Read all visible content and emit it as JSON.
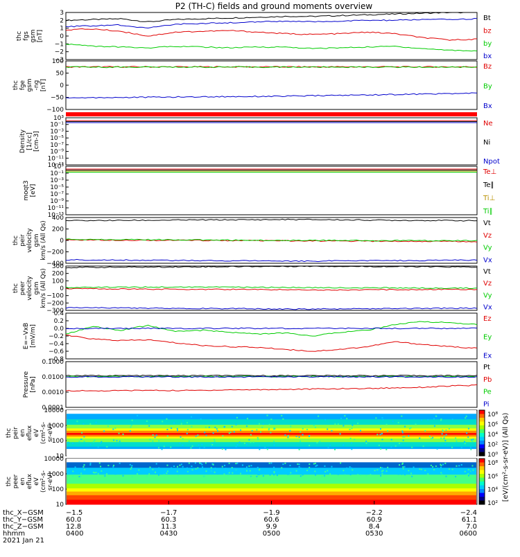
{
  "title": "P2 (TH-C) fields and ground moments overview",
  "colors": {
    "black": "#000000",
    "red": "#e00000",
    "green": "#00cc00",
    "blue": "#0000cc",
    "orange": "#b89000"
  },
  "chart_data": [
    {
      "type": "line",
      "ylabel": [
        "thc",
        "fgs",
        "gsm",
        "[nT]"
      ],
      "ylim": [
        -3,
        3
      ],
      "yticks": [
        "3",
        "2",
        "1",
        "0",
        "−1",
        "−2",
        "−3"
      ],
      "legend": [
        {
          "label": "Bt",
          "color": "#000000"
        },
        {
          "label": "bz",
          "color": "#e00000"
        },
        {
          "label": "by",
          "color": "#00cc00"
        },
        {
          "label": "bx",
          "color": "#0000cc"
        }
      ],
      "series": [
        {
          "name": "Bt",
          "values": [
            2.0,
            2.1,
            2.2,
            1.8,
            2.1,
            2.2,
            2.3,
            2.4,
            2.5,
            2.5,
            2.6,
            2.7,
            2.8,
            2.9,
            3.0,
            3.0
          ],
          "color": "#000000"
        },
        {
          "name": "bz",
          "values": [
            0.8,
            0.9,
            0.6,
            0.0,
            0.5,
            0.6,
            0.7,
            0.5,
            0.3,
            0.2,
            0.3,
            0.5,
            0.3,
            -0.2,
            -0.5,
            -0.4
          ],
          "color": "#e00000"
        },
        {
          "name": "by",
          "values": [
            -1.0,
            -1.3,
            -1.4,
            -1.5,
            -1.3,
            -1.4,
            -1.5,
            -1.4,
            -1.4,
            -1.6,
            -1.5,
            -1.4,
            -1.3,
            -1.6,
            -1.8,
            -1.9
          ],
          "color": "#00cc00"
        },
        {
          "name": "bx",
          "values": [
            1.2,
            1.3,
            1.4,
            1.0,
            1.5,
            1.6,
            1.7,
            1.8,
            1.9,
            1.8,
            1.9,
            2.0,
            2.0,
            2.1,
            2.1,
            2.2
          ],
          "color": "#0000cc"
        }
      ]
    },
    {
      "type": "line",
      "ylabel": [
        "thc",
        "fge",
        "gsm",
        "-ng",
        "[nT]"
      ],
      "ylim": [
        -130,
        100
      ],
      "yticks": [
        "100",
        "50",
        "0",
        "−50",
        "−100"
      ],
      "legend": [
        {
          "label": "Bz",
          "color": "#e00000"
        },
        {
          "label": "By",
          "color": "#00cc00"
        },
        {
          "label": "Bx",
          "color": "#0000cc"
        }
      ],
      "series": [
        {
          "name": "Bz",
          "values": [
            72,
            72,
            72,
            72,
            72,
            72,
            72,
            72,
            72,
            72,
            72,
            72,
            72,
            72,
            72,
            72
          ],
          "color": "#e00000"
        },
        {
          "name": "By",
          "values": [
            71,
            71,
            71,
            71,
            71,
            71,
            71,
            71,
            71,
            71,
            71,
            71,
            71,
            71,
            71,
            71
          ],
          "color": "#00cc00"
        },
        {
          "name": "Bx",
          "values": [
            -75,
            -74,
            -73,
            -72,
            -71,
            -70,
            -69,
            -68,
            -67,
            -65,
            -63,
            -61,
            -59,
            -57,
            -55,
            -53
          ],
          "color": "#0000cc"
        }
      ]
    },
    {
      "type": "line",
      "ylabel": [
        "Density",
        "[1/cc]",
        "[cm-3]"
      ],
      "ylim_log": [
        -12,
        4
      ],
      "yticks": [
        "10³",
        "10⁻¹",
        "10⁻³",
        "10⁻⁵",
        "10⁻⁷",
        "10⁻⁹",
        "10⁻¹¹",
        "10⁻¹³"
      ],
      "legend": [
        {
          "label": "Ne",
          "color": "#e00000"
        },
        {
          "label": "Ni",
          "color": "#000000"
        },
        {
          "label": "Npot",
          "color": "#0000cc"
        }
      ]
    },
    {
      "type": "line",
      "ylabel": [
        "moqt3",
        "[eV]"
      ],
      "ylim_log": [
        -12,
        4
      ],
      "yticks": [
        "10³",
        "10⁻¹",
        "10⁻³",
        "10⁻⁵",
        "10⁻⁷",
        "10⁻⁹",
        "10⁻¹¹",
        "10⁻¹³"
      ],
      "legend": [
        {
          "label": "Te⊥",
          "color": "#e00000"
        },
        {
          "label": "Te∥",
          "color": "#000000"
        },
        {
          "label": "Ti⊥",
          "color": "#b89000"
        },
        {
          "label": "Ti∥",
          "color": "#00cc00"
        }
      ]
    },
    {
      "type": "line",
      "ylabel": [
        "thc",
        "peir",
        "velocity",
        "gsm",
        "km/s (All Qs)"
      ],
      "ylim": [
        -400,
        400
      ],
      "yticks": [
        "400",
        "200",
        "0",
        "−200",
        "−400"
      ],
      "legend": [
        {
          "label": "Vt",
          "color": "#000000"
        },
        {
          "label": "Vz",
          "color": "#e00000"
        },
        {
          "label": "Vy",
          "color": "#00cc00"
        },
        {
          "label": "Vx",
          "color": "#0000cc"
        }
      ],
      "series": [
        {
          "name": "Vt",
          "values": [
            345,
            348,
            350,
            352,
            355,
            358,
            360,
            362,
            365,
            364,
            360,
            355,
            352,
            350,
            348,
            345
          ],
          "color": "#000000"
        },
        {
          "name": "Vz",
          "values": [
            10,
            8,
            5,
            3,
            2,
            0,
            -2,
            -5,
            -8,
            -10,
            -12,
            -14,
            -15,
            -16,
            -18,
            -20
          ],
          "color": "#e00000"
        },
        {
          "name": "Vy",
          "values": [
            20,
            18,
            15,
            12,
            10,
            8,
            5,
            3,
            2,
            0,
            -2,
            -3,
            -4,
            -5,
            -5,
            -5
          ],
          "color": "#00cc00"
        },
        {
          "name": "Vx",
          "values": [
            -340,
            -342,
            -345,
            -348,
            -350,
            -352,
            -355,
            -358,
            -360,
            -362,
            -358,
            -355,
            -352,
            -350,
            -348,
            -345
          ],
          "color": "#0000cc"
        }
      ]
    },
    {
      "type": "line",
      "ylabel": [
        "thc",
        "peer",
        "velocity",
        "gsm",
        "km/s (All Qs)"
      ],
      "ylim": [
        -300,
        300
      ],
      "yticks": [
        "300",
        "200",
        "100",
        "0",
        "−100",
        "−200",
        "−300"
      ],
      "legend": [
        {
          "label": "Vt",
          "color": "#000000"
        },
        {
          "label": "Vz",
          "color": "#e00000"
        },
        {
          "label": "Vy",
          "color": "#00cc00"
        },
        {
          "label": "Vx",
          "color": "#0000cc"
        }
      ],
      "series": [
        {
          "name": "Vt",
          "values": [
            280,
            282,
            284,
            286,
            288,
            290,
            292,
            294,
            296,
            298,
            296,
            294,
            292,
            290,
            288,
            286
          ],
          "color": "#000000"
        },
        {
          "name": "Vz",
          "values": [
            -5,
            -8,
            -10,
            -12,
            -14,
            -15,
            -16,
            -18,
            -20,
            -22,
            -24,
            -22,
            -20,
            -18,
            -16,
            -15
          ],
          "color": "#e00000"
        },
        {
          "name": "Vy",
          "values": [
            10,
            12,
            14,
            15,
            16,
            15,
            14,
            12,
            10,
            8,
            6,
            5,
            4,
            3,
            2,
            0
          ],
          "color": "#00cc00"
        },
        {
          "name": "Vx",
          "values": [
            -265,
            -266,
            -268,
            -270,
            -272,
            -274,
            -276,
            -278,
            -280,
            -282,
            -280,
            -278,
            -276,
            -274,
            -272,
            -270
          ],
          "color": "#0000cc"
        }
      ]
    },
    {
      "type": "line",
      "ylabel": [
        "E=−VxB",
        "[mV/m]"
      ],
      "ylim": [
        -0.8,
        0.4
      ],
      "yticks": [
        "0.4",
        "0.2",
        "0.0",
        "−0.2",
        "−0.4",
        "−0.6",
        "−0.8"
      ],
      "legend": [
        {
          "label": "Ez",
          "color": "#e00000"
        },
        {
          "label": "Ey",
          "color": "#00cc00"
        },
        {
          "label": "Ex",
          "color": "#0000cc"
        }
      ],
      "series": [
        {
          "name": "Ez",
          "values": [
            -0.18,
            -0.28,
            -0.32,
            -0.3,
            -0.38,
            -0.45,
            -0.48,
            -0.5,
            -0.55,
            -0.6,
            -0.55,
            -0.48,
            -0.35,
            -0.42,
            -0.48,
            -0.52
          ],
          "color": "#e00000"
        },
        {
          "name": "Ey",
          "values": [
            -0.15,
            0.05,
            -0.05,
            0.08,
            -0.08,
            -0.05,
            -0.1,
            -0.15,
            -0.12,
            -0.2,
            -0.1,
            -0.05,
            0.1,
            0.18,
            0.15,
            0.1
          ],
          "color": "#00cc00"
        },
        {
          "name": "Ex",
          "values": [
            0.0,
            0.0,
            0.0,
            0.0,
            0.0,
            0.0,
            0.0,
            0.0,
            0.0,
            0.0,
            0.0,
            0.0,
            0.0,
            0.0,
            0.0,
            0.0
          ],
          "color": "#0000cc"
        }
      ]
    },
    {
      "type": "line",
      "ylabel": [
        "Pressure",
        "[nPa]"
      ],
      "ylim_log": [
        -4,
        -1
      ],
      "yticks": [
        "0.1000",
        "0.0100",
        "0.0010",
        "0.0001"
      ],
      "legend": [
        {
          "label": "Pt",
          "color": "#000000"
        },
        {
          "label": "Pb",
          "color": "#e00000"
        },
        {
          "label": "Pe",
          "color": "#00cc00"
        },
        {
          "label": "Pi",
          "color": "#0000cc"
        }
      ],
      "series": [
        {
          "name": "Pt",
          "values": [
            -1.92,
            -1.92,
            -1.92,
            -1.92,
            -1.92,
            -1.92,
            -1.92,
            -1.92,
            -1.92,
            -1.92,
            -1.92,
            -1.92,
            -1.92,
            -1.92,
            -1.92,
            -1.92
          ],
          "color": "#000000"
        },
        {
          "name": "Pb",
          "values": [
            -2.9,
            -2.92,
            -2.9,
            -2.88,
            -2.9,
            -2.88,
            -2.85,
            -2.84,
            -2.82,
            -2.8,
            -2.78,
            -2.76,
            -2.72,
            -2.68,
            -2.6,
            -2.55
          ],
          "color": "#e00000"
        },
        {
          "name": "Pe",
          "values": [
            -1.98,
            -1.98,
            -1.98,
            -1.98,
            -1.98,
            -1.98,
            -1.98,
            -1.98,
            -1.98,
            -1.98,
            -1.98,
            -1.98,
            -1.98,
            -1.98,
            -1.98,
            -1.98
          ],
          "color": "#00cc00"
        },
        {
          "name": "Pi",
          "values": [
            -2.0,
            -2.0,
            -2.0,
            -2.0,
            -2.0,
            -2.0,
            -2.0,
            -2.0,
            -2.0,
            -2.0,
            -2.0,
            -2.0,
            -2.0,
            -2.0,
            -2.0,
            -2.0
          ],
          "color": "#0000cc"
        }
      ]
    },
    {
      "type": "heatmap",
      "ylabel": [
        "thc",
        "peir",
        "en",
        "eflux",
        "eV",
        "(cm²-s-",
        "sr-eV)"
      ],
      "ylim_log": [
        0,
        4
      ],
      "yticks": [
        "10000",
        "1000",
        "100",
        "10"
      ],
      "colorbar_label": "[eV/(cm²-s-sr-eV)] (All Qs)",
      "colorbar_ticks": [
        "10⁸",
        "10⁶",
        "10⁴",
        "10²",
        "10⁰"
      ]
    },
    {
      "type": "heatmap",
      "ylabel": [
        "thc",
        "peer",
        "en",
        "eflux",
        "eV",
        "(cm²-s-",
        "sr-eV)"
      ],
      "ylim_log": [
        0,
        4
      ],
      "yticks": [
        "10000",
        "1000",
        "100",
        "10"
      ],
      "colorbar_label": "[eV/(cm²-s-sr-eV)] (All Qs)",
      "colorbar_ticks": [
        "10⁸",
        "10⁶",
        "10⁴",
        "10²"
      ]
    }
  ],
  "xaxis": {
    "row_labels": [
      "thc_X−GSM",
      "thc_Y−GSM",
      "thc_Z−GSM",
      "hhmm",
      "2021 Jan 21"
    ],
    "columns": [
      {
        "values": [
          "−1.5",
          "60.0",
          "12.8",
          "0400"
        ]
      },
      {
        "values": [
          "−1.7",
          "60.3",
          "11.3",
          "0430"
        ]
      },
      {
        "values": [
          "−1.9",
          "60.6",
          "9.9",
          "0500"
        ]
      },
      {
        "values": [
          "−2.2",
          "60.9",
          "8.4",
          "0530"
        ]
      },
      {
        "values": [
          "−2.4",
          "61.1",
          "7.0",
          "0600"
        ]
      }
    ]
  }
}
